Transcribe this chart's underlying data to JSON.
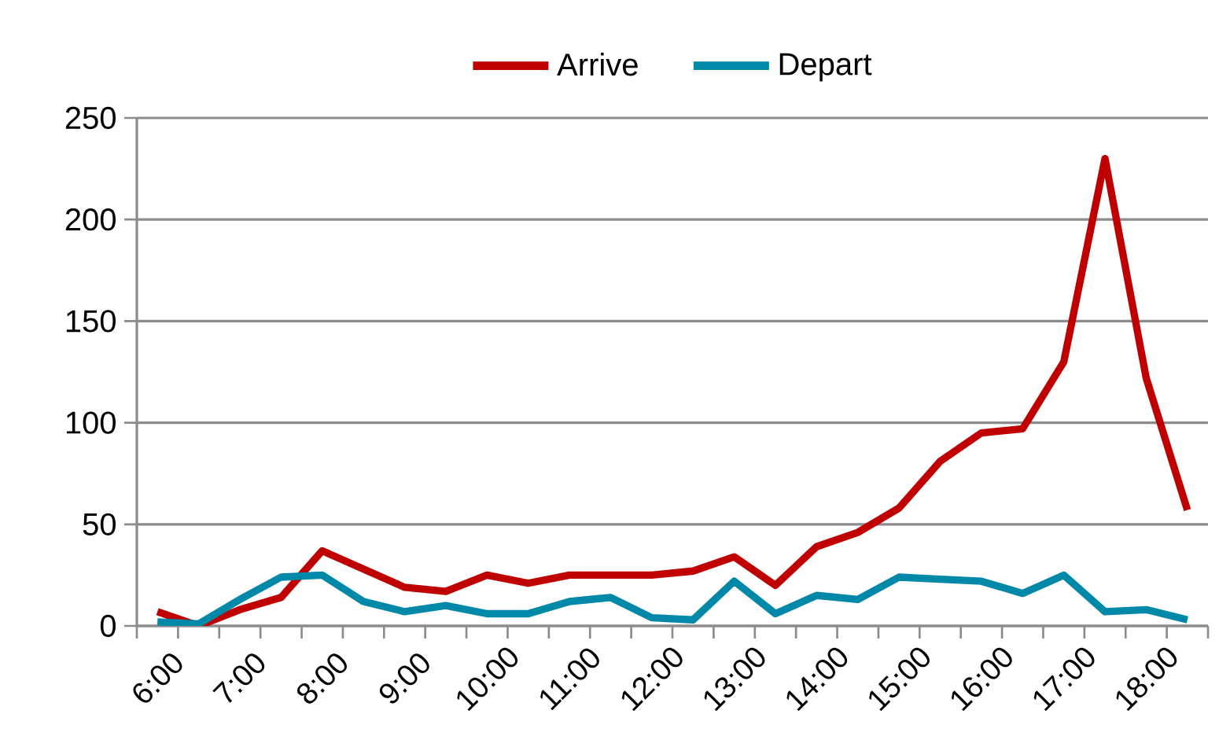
{
  "chart_data": {
    "type": "line",
    "categories": [
      "6:00",
      null,
      "7:00",
      null,
      "8:00",
      null,
      "9:00",
      null,
      "10:00",
      null,
      "11:00",
      null,
      "12:00",
      null,
      "13:00",
      null,
      "14:00",
      null,
      "15:00",
      null,
      "16:00",
      null,
      "17:00",
      null,
      "18:00",
      null
    ],
    "series": [
      {
        "name": "Arrive",
        "color": "#c00000",
        "values": [
          7,
          0,
          8,
          14,
          37,
          28,
          19,
          17,
          25,
          21,
          25,
          25,
          25,
          27,
          34,
          20,
          39,
          46,
          58,
          81,
          95,
          97,
          130,
          230,
          122,
          57
        ]
      },
      {
        "name": "Depart",
        "color": "#0088a8",
        "values": [
          2,
          1,
          13,
          24,
          25,
          12,
          7,
          10,
          6,
          6,
          12,
          14,
          4,
          3,
          22,
          6,
          15,
          13,
          24,
          23,
          22,
          16,
          25,
          7,
          8,
          3
        ]
      }
    ],
    "ylim": [
      0,
      250
    ],
    "yticks": [
      0,
      50,
      100,
      150,
      200,
      250
    ],
    "grid": "y",
    "legend": "top",
    "marker": "none",
    "line_style": "solid"
  }
}
